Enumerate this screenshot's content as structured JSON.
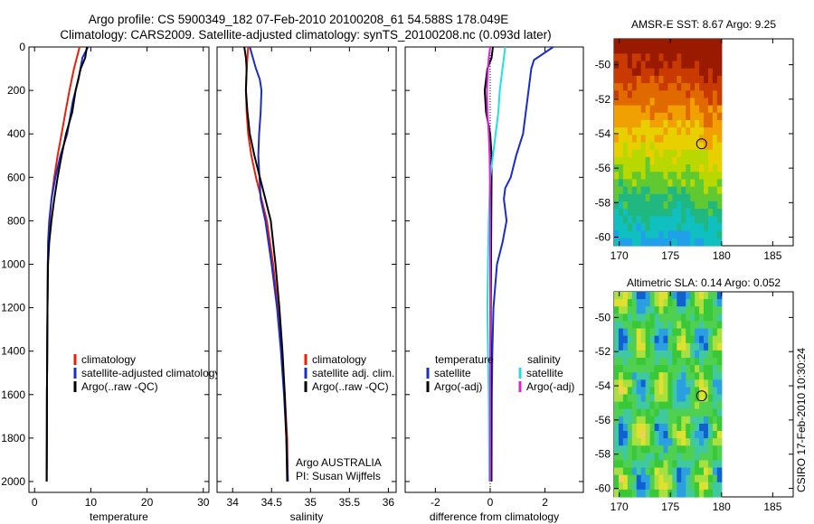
{
  "title": {
    "line1": "Argo profile: CS 5900349_182 07-Feb-2010 20100208_61 54.588S 178.049E",
    "line2": "Climatology: CARS2009. Satellite-adjusted climatology: synTS_20100208.nc (0.093d later)"
  },
  "footer": "CSIRO 17-Feb-2010 10:30:24",
  "chart_data": [
    {
      "type": "line",
      "id": "temperature",
      "xlabel": "temperature",
      "xlim": [
        -1,
        31
      ],
      "ylim": [
        2050,
        0
      ],
      "xticks": [
        0,
        10,
        20,
        30
      ],
      "yticks": [
        0,
        200,
        400,
        600,
        800,
        1000,
        1200,
        1400,
        1600,
        1800,
        2000
      ],
      "legend": [
        "climatology",
        "satellite-adjusted climatology",
        "Argo(..raw -QC)"
      ],
      "series": [
        {
          "name": "climatology",
          "color": "#e8200a",
          "x": [
            8.0,
            7.0,
            6.2,
            5.5,
            4.8,
            4.1,
            3.5,
            3.0,
            2.7,
            2.5,
            2.35,
            2.3,
            2.25,
            2.2,
            2.18,
            2.15
          ],
          "y": [
            0,
            100,
            200,
            300,
            400,
            500,
            600,
            700,
            800,
            900,
            1000,
            1200,
            1400,
            1600,
            1800,
            2000
          ]
        },
        {
          "name": "satellite-adjusted climatology",
          "color": "#1a2ccc",
          "x": [
            9.5,
            8.5,
            7.8,
            7.3,
            6.8,
            5.8,
            4.6,
            3.7,
            3.0,
            2.6,
            2.4,
            2.3,
            2.25,
            2.2,
            2.18,
            2.15
          ],
          "y": [
            0,
            50,
            150,
            200,
            250,
            400,
            500,
            600,
            700,
            800,
            900,
            1200,
            1400,
            1600,
            1800,
            2000
          ]
        },
        {
          "name": "Argo(..raw -QC)",
          "color": "#000000",
          "x": [
            9.3,
            9.0,
            8.2,
            7.3,
            6.7,
            5.6,
            4.8,
            4.1,
            3.5,
            3.0,
            2.6,
            2.4,
            2.3,
            2.25,
            2.2,
            2.18,
            2.15
          ],
          "y": [
            0,
            50,
            100,
            200,
            300,
            400,
            500,
            600,
            700,
            800,
            900,
            1000,
            1200,
            1400,
            1600,
            1800,
            2000
          ]
        }
      ]
    },
    {
      "type": "line",
      "id": "salinity",
      "xlabel": "salinity",
      "xlim": [
        33.8,
        36.1
      ],
      "ylim": [
        2050,
        0
      ],
      "xticks": [
        34,
        34.5,
        35,
        35.5,
        36
      ],
      "legend": [
        "climatology",
        "satellite adj. clim.",
        "Argo(..raw -QC)"
      ],
      "annotation": [
        "Argo AUSTRALIA",
        "PI: Susan Wijffels"
      ],
      "series": [
        {
          "name": "climatology",
          "color": "#e8200a",
          "x": [
            34.2,
            34.18,
            34.17,
            34.18,
            34.2,
            34.24,
            34.3,
            34.37,
            34.44,
            34.52,
            34.58,
            34.63,
            34.67,
            34.7,
            34.71
          ],
          "y": [
            0,
            100,
            200,
            300,
            400,
            500,
            600,
            700,
            800,
            1000,
            1200,
            1400,
            1600,
            1800,
            2000
          ]
        },
        {
          "name": "satellite adj. clim.",
          "color": "#1a2ccc",
          "x": [
            34.22,
            34.3,
            34.35,
            34.37,
            34.36,
            34.34,
            34.33,
            34.36,
            34.42,
            34.5,
            34.57,
            34.62,
            34.66,
            34.69,
            34.71
          ],
          "y": [
            0,
            100,
            150,
            200,
            300,
            400,
            500,
            700,
            800,
            1000,
            1200,
            1400,
            1600,
            1800,
            2000
          ]
        },
        {
          "name": "Argo(..raw -QC)",
          "color": "#000000",
          "x": [
            34.15,
            34.17,
            34.18,
            34.17,
            34.19,
            34.22,
            34.28,
            34.35,
            34.42,
            34.49,
            34.55,
            34.6,
            34.64,
            34.67,
            34.69,
            34.7
          ],
          "y": [
            0,
            50,
            100,
            200,
            300,
            400,
            500,
            600,
            700,
            800,
            1000,
            1200,
            1400,
            1600,
            1800,
            2000
          ]
        }
      ]
    },
    {
      "type": "line",
      "id": "difference",
      "xlabel": "difference from climatology",
      "xlim": [
        -3.1,
        3.4
      ],
      "ylim": [
        2050,
        0
      ],
      "xticks": [
        -2,
        0,
        2
      ],
      "legend_temperature": {
        "heading": "temperature",
        "items": [
          "satellite",
          "Argo(-adj)"
        ]
      },
      "legend_salinity": {
        "heading": "salinity",
        "items": [
          "satellite",
          "Argo(-adj)"
        ]
      },
      "series": [
        {
          "name": "temperature satellite",
          "color": "#1a2ccc",
          "x": [
            2.3,
            1.6,
            1.5,
            1.4,
            1.2,
            0.95,
            0.75,
            0.55,
            0.5,
            0.6,
            0.45,
            0.25,
            0.12,
            0.08,
            0.06,
            0.05
          ],
          "y": [
            0,
            60,
            100,
            200,
            400,
            500,
            600,
            650,
            700,
            800,
            900,
            1000,
            1200,
            1400,
            1600,
            2000
          ]
        },
        {
          "name": "temperature Argo(-adj)",
          "color": "#000000",
          "x": [
            0.1,
            0.05,
            -0.1,
            -0.2,
            -0.15,
            0.0,
            0.05,
            0.05,
            0.04,
            0.03,
            0.02,
            0.02,
            0.03,
            0.04
          ],
          "y": [
            0,
            50,
            100,
            200,
            300,
            400,
            500,
            600,
            800,
            1000,
            1200,
            1400,
            1600,
            2000
          ]
        },
        {
          "name": "salinity satellite",
          "color": "#22e0e0",
          "x": [
            0.55,
            0.45,
            0.35,
            0.3,
            0.2,
            0.1,
            0.0,
            -0.05,
            -0.08,
            -0.1,
            -0.08,
            -0.05,
            -0.03
          ],
          "y": [
            0,
            100,
            200,
            300,
            400,
            500,
            600,
            800,
            1000,
            1200,
            1400,
            1600,
            2000
          ]
        },
        {
          "name": "salinity Argo(-adj)",
          "color": "#e020e0",
          "x": [
            0.0,
            -0.05,
            -0.08,
            -0.12,
            -0.1,
            -0.05,
            -0.02,
            -0.01,
            0.0,
            0.0
          ],
          "y": [
            0,
            50,
            100,
            200,
            300,
            400,
            500,
            600,
            800,
            2000
          ]
        }
      ]
    },
    {
      "type": "heatmap",
      "id": "sst-map",
      "title": "AMSR-E SST: 8.67 Argo: 9.25",
      "xlim": [
        169.5,
        187
      ],
      "ylim": [
        -60.5,
        -48.5
      ],
      "xticks": [
        170,
        175,
        180,
        185
      ],
      "yticks": [
        -50,
        -52,
        -54,
        -56,
        -58,
        -60
      ],
      "data_extent_lon": [
        169.5,
        180
      ],
      "data_extent_lat": [
        -60.5,
        -48.5
      ],
      "argo_position": {
        "lon": 178.049,
        "lat": -54.588
      },
      "colors": [
        "#9a1a00",
        "#c83a00",
        "#e06a00",
        "#f0a000",
        "#e8d000",
        "#b8d800",
        "#60c830",
        "#20b880",
        "#10c0c0",
        "#20a0e8"
      ]
    },
    {
      "type": "heatmap",
      "id": "sla-map",
      "title": "Altimetric SLA: 0.14 Argo: 0.052",
      "xlim": [
        169.5,
        187
      ],
      "ylim": [
        -60.5,
        -48.5
      ],
      "xticks": [
        170,
        175,
        180,
        185
      ],
      "yticks": [
        -50,
        -52,
        -54,
        -56,
        -58,
        -60
      ],
      "data_extent_lon": [
        169.5,
        180
      ],
      "data_extent_lat": [
        -60.5,
        -48.5
      ],
      "argo_position": {
        "lon": 178.049,
        "lat": -54.588
      },
      "colors": [
        "#1060d0",
        "#2aa0e0",
        "#40c8a0",
        "#50d050",
        "#38c838",
        "#a8e040",
        "#e0e030",
        "#f0d060"
      ]
    }
  ]
}
